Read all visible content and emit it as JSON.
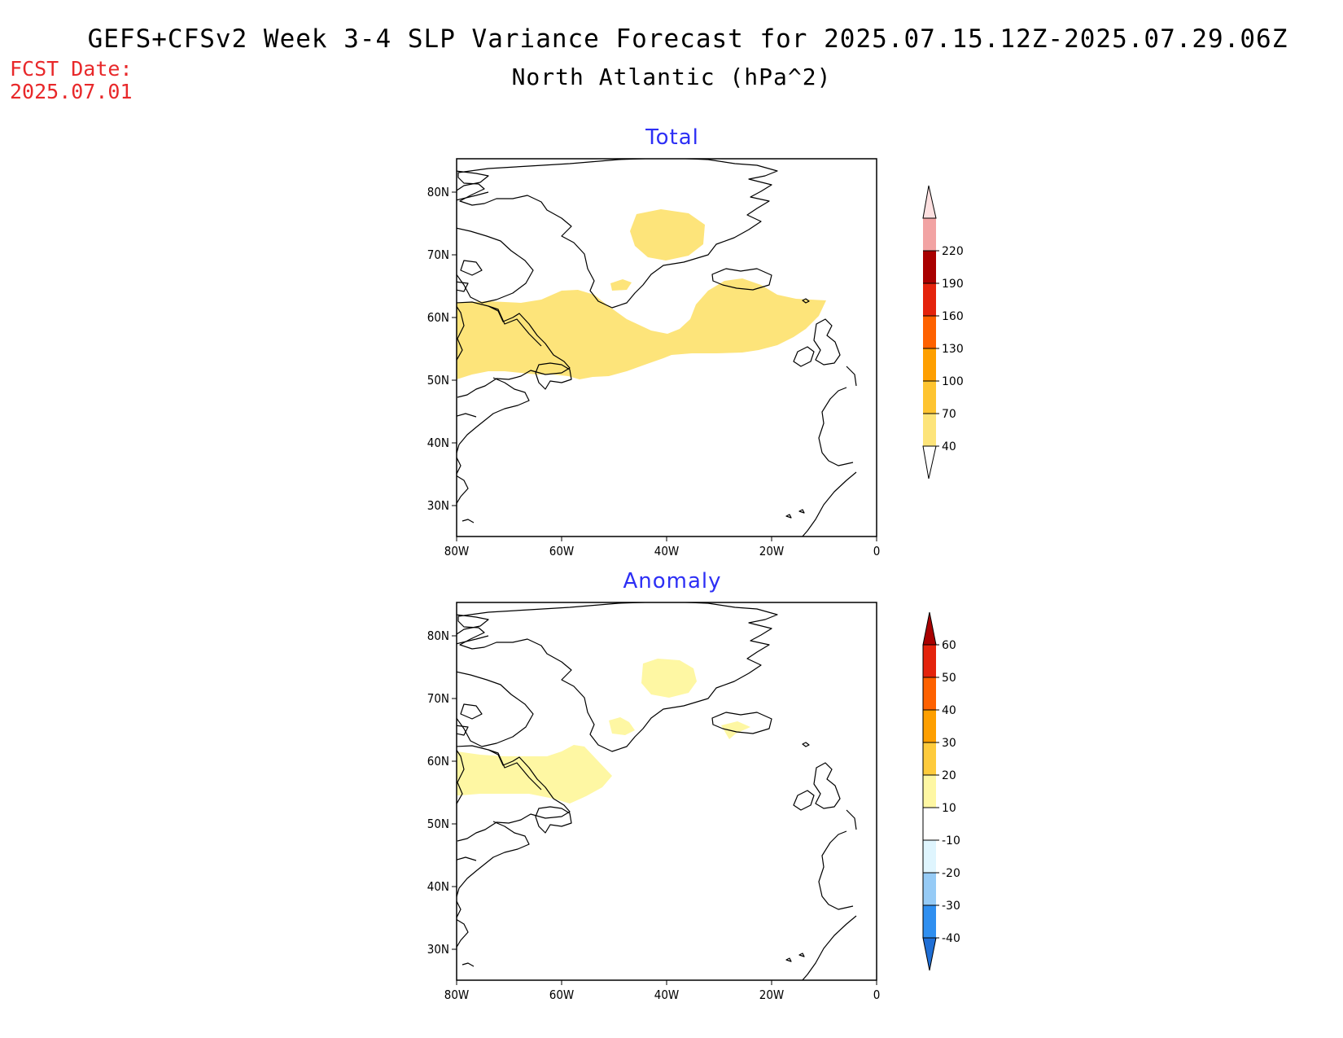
{
  "header": {
    "title_line1": "GEFS+CFSv2 Week 3-4 SLP Variance Forecast for 2025.07.15.12Z-2025.07.29.06Z",
    "title_line2": "North Atlantic (hPa^2)",
    "fcst_label": "FCST Date:",
    "fcst_date": "2025.07.01"
  },
  "map_extent": {
    "lon": [
      -80,
      0
    ],
    "lat": [
      25,
      85
    ]
  },
  "axes": {
    "lon_ticks": [
      "80W",
      "60W",
      "40W",
      "20W",
      "0"
    ],
    "lat_ticks": [
      "80N",
      "70N",
      "60N",
      "50N",
      "40N",
      "30N"
    ]
  },
  "panels": [
    {
      "title": "Total",
      "colorbar": {
        "levels": [
          "40",
          "70",
          "100",
          "130",
          "160",
          "190",
          "220"
        ],
        "colors": [
          "#fde47a",
          "#fec430",
          "#fe9f00",
          "#fe6100",
          "#e4230c",
          "#a90000",
          "#f2a3a3",
          "#fde0e0"
        ],
        "shaded_category": "40-70"
      }
    },
    {
      "title": "Anomaly",
      "colorbar": {
        "levels": [
          "-40",
          "-30",
          "-20",
          "-10",
          "10",
          "20",
          "30",
          "40",
          "50",
          "60"
        ],
        "colors": [
          "#1f6fd6",
          "#2f8ff0",
          "#96cbf6",
          "#dff5fe",
          "#ffffff",
          "#fef7a3",
          "#fecb3c",
          "#fe9f00",
          "#fe6100",
          "#e4230c",
          "#a90000"
        ],
        "shaded_category": "10-20"
      }
    }
  ],
  "colors": {
    "panel_title": "#2d2ff5",
    "fcst_text": "#e8282a"
  }
}
